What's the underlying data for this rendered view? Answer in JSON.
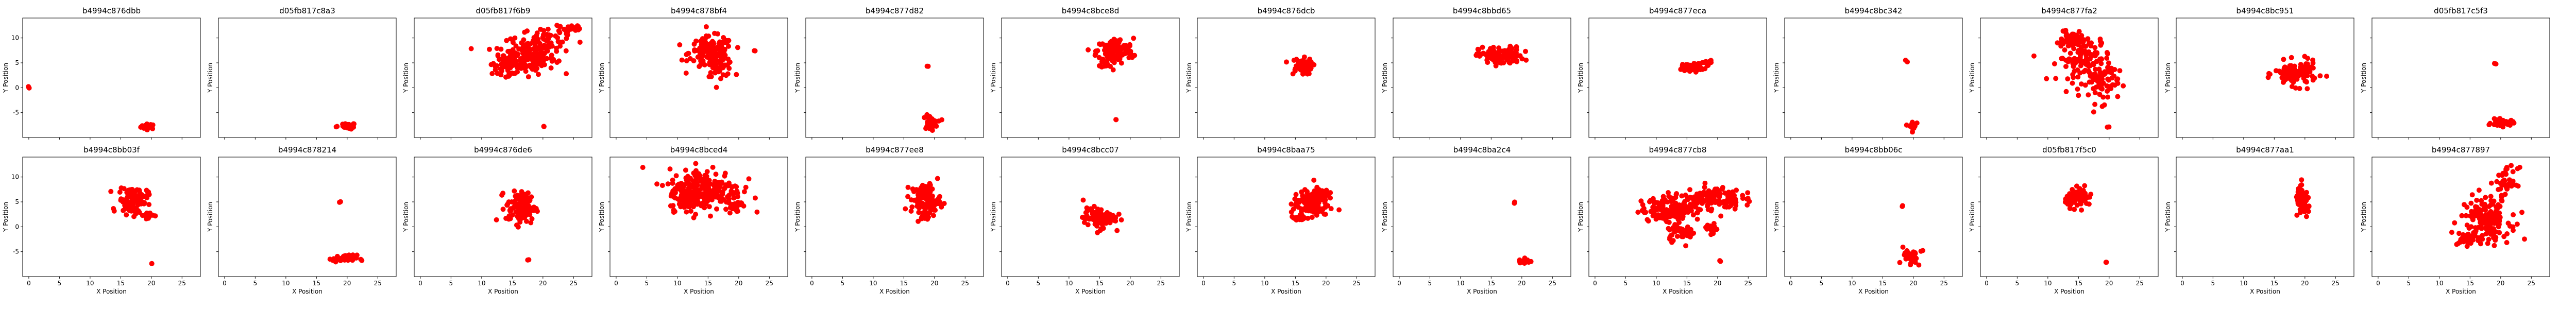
{
  "chart_data": {
    "type": "scatter",
    "layout": {
      "rows": 2,
      "cols": 13,
      "sharex": true,
      "sharey": true
    },
    "xlabel": "X Position",
    "ylabel": "Y Position",
    "xlim": [
      -1,
      28
    ],
    "ylim": [
      -10,
      14
    ],
    "xticks": [
      0,
      5,
      10,
      15,
      20,
      25
    ],
    "yticks": [
      -5,
      0,
      5,
      10
    ],
    "color": "#ff0000",
    "panels": [
      {
        "title": "b4994c876dbb",
        "clusters": [
          [
            0,
            0,
            0.15,
            0.15,
            3
          ],
          [
            19.5,
            -7.8,
            0.6,
            0.25,
            30
          ]
        ]
      },
      {
        "title": "d05fb817c8a3",
        "clusters": [
          [
            18.3,
            -7.8,
            0.1,
            0.1,
            2
          ],
          [
            20.3,
            -7.7,
            0.5,
            0.3,
            25
          ]
        ]
      },
      {
        "title": "d05fb817f6b9",
        "clusters": [
          [
            17,
            6,
            2.5,
            1.6,
            160
          ],
          [
            20.5,
            9.5,
            2,
            1.3,
            60
          ],
          [
            14.5,
            4.5,
            1.4,
            0.9,
            50
          ],
          [
            24.5,
            11.8,
            1.2,
            0.6,
            20
          ],
          [
            20.2,
            -7.8,
            0.1,
            0.1,
            2
          ]
        ]
      },
      {
        "title": "b4994c878bf4",
        "clusters": [
          [
            15.5,
            7,
            1.8,
            1.6,
            140
          ],
          [
            17,
            4.5,
            1.1,
            1.1,
            40
          ],
          [
            22.5,
            7.5,
            0.15,
            0.15,
            2
          ]
        ]
      },
      {
        "title": "b4994c877d82",
        "clusters": [
          [
            18.9,
            4.2,
            0.1,
            0.1,
            2
          ],
          [
            19.3,
            -7,
            0.6,
            0.7,
            35
          ]
        ]
      },
      {
        "title": "b4994c8bce8d",
        "clusters": [
          [
            17.5,
            7.3,
            1.5,
            1.3,
            130
          ],
          [
            16.2,
            5,
            0.5,
            0.5,
            15
          ],
          [
            17.8,
            -6.5,
            0.1,
            0.1,
            2
          ]
        ]
      },
      {
        "title": "b4994c876dcb",
        "clusters": [
          [
            15.9,
            4.3,
            0.9,
            0.8,
            70
          ]
        ]
      },
      {
        "title": "b4994c8bbd65",
        "clusters": [
          [
            16.6,
            6.4,
            1.8,
            0.9,
            120
          ]
        ]
      },
      {
        "title": "b4994c877eca",
        "clusters": [
          [
            16,
            4.2,
            0.9,
            0.4,
            50
          ],
          [
            18.3,
            5,
            0.4,
            0.3,
            12
          ]
        ]
      },
      {
        "title": "b4994c8bc342",
        "clusters": [
          [
            18.8,
            5.3,
            0.1,
            0.1,
            2
          ],
          [
            19.8,
            -7.7,
            0.3,
            0.5,
            25
          ]
        ]
      },
      {
        "title": "b4994c877fa2",
        "clusters": [
          [
            16,
            6,
            2.2,
            2.4,
            130
          ],
          [
            19,
            1,
            1.2,
            2,
            60
          ],
          [
            14,
            9.5,
            1,
            0.9,
            30
          ],
          [
            19.8,
            -7.9,
            0.1,
            0.1,
            2
          ]
        ]
      },
      {
        "title": "b4994c8bc951",
        "clusters": [
          [
            18.5,
            2.8,
            1.7,
            1.2,
            110
          ],
          [
            20,
            3.5,
            0.6,
            0.5,
            20
          ]
        ]
      },
      {
        "title": "d05fb817c5f3",
        "clusters": [
          [
            19,
            4.8,
            0.1,
            0.1,
            2
          ],
          [
            20.3,
            -7.1,
            0.9,
            0.35,
            35
          ]
        ]
      },
      {
        "title": "b4994c8bb03f",
        "clusters": [
          [
            17,
            5.3,
            1.2,
            1.4,
            110
          ],
          [
            19.5,
            2.3,
            0.4,
            0.4,
            15
          ],
          [
            20,
            -7.3,
            0.1,
            0.1,
            2
          ]
        ]
      },
      {
        "title": "b4994c878214",
        "clusters": [
          [
            18.8,
            4.9,
            0.1,
            0.1,
            2
          ],
          [
            19.6,
            -6.4,
            1,
            0.35,
            45
          ]
        ]
      },
      {
        "title": "b4994c876de6",
        "clusters": [
          [
            16.4,
            3.8,
            1.2,
            1.6,
            110
          ],
          [
            17.5,
            -6.6,
            0.1,
            0.1,
            2
          ]
        ]
      },
      {
        "title": "b4994c8bced4",
        "clusters": [
          [
            14.5,
            7.5,
            3,
            2.1,
            230
          ],
          [
            11.5,
            5.5,
            1.4,
            0.9,
            50
          ],
          [
            19.5,
            4.2,
            0.5,
            0.8,
            20
          ]
        ]
      },
      {
        "title": "b4994c877ee8",
        "clusters": [
          [
            18.6,
            5.6,
            1.2,
            1.5,
            110
          ],
          [
            18.3,
            2.1,
            0.4,
            0.4,
            12
          ]
        ]
      },
      {
        "title": "b4994c8bcc07",
        "clusters": [
          [
            14.9,
            1.8,
            1.3,
            1,
            100
          ]
        ]
      },
      {
        "title": "b4994c8baa75",
        "clusters": [
          [
            17.5,
            4.7,
            1.4,
            1.3,
            130
          ],
          [
            15.6,
            1.9,
            0.6,
            0.5,
            20
          ],
          [
            19.5,
            6.8,
            0.5,
            0.6,
            20
          ]
        ]
      },
      {
        "title": "b4994c8ba2c4",
        "clusters": [
          [
            18.8,
            4.8,
            0.1,
            0.1,
            2
          ],
          [
            20.4,
            -6.8,
            0.5,
            0.4,
            25
          ]
        ]
      },
      {
        "title": "b4994c877cb8",
        "clusters": [
          [
            12.5,
            3.5,
            2.5,
            1.2,
            140
          ],
          [
            19,
            5.8,
            2.4,
            1.2,
            120
          ],
          [
            14,
            -1,
            1.3,
            0.9,
            40
          ],
          [
            19,
            -0.5,
            0.5,
            0.6,
            15
          ],
          [
            20.3,
            -7,
            0.1,
            0.1,
            2
          ]
        ]
      },
      {
        "title": "b4994c8bb06c",
        "clusters": [
          [
            18.3,
            4.1,
            0.1,
            0.1,
            2
          ],
          [
            19.5,
            -6.3,
            0.6,
            1,
            30
          ],
          [
            21.3,
            -4.8,
            0.1,
            0.1,
            2
          ]
        ]
      },
      {
        "title": "d05fb817f5c0",
        "clusters": [
          [
            15.1,
            5.8,
            1.1,
            0.9,
            80
          ],
          [
            19.5,
            -7.3,
            0.1,
            0.1,
            2
          ]
        ]
      },
      {
        "title": "b4994c877aa1",
        "clusters": [
          [
            19.7,
            4.8,
            0.6,
            1.4,
            70
          ]
        ]
      },
      {
        "title": "b4994c877897",
        "clusters": [
          [
            17.5,
            1.5,
            2,
            2.3,
            160
          ],
          [
            21,
            9,
            0.9,
            1.4,
            40
          ],
          [
            14.5,
            -2.5,
            0.8,
            0.6,
            30
          ]
        ]
      }
    ]
  }
}
